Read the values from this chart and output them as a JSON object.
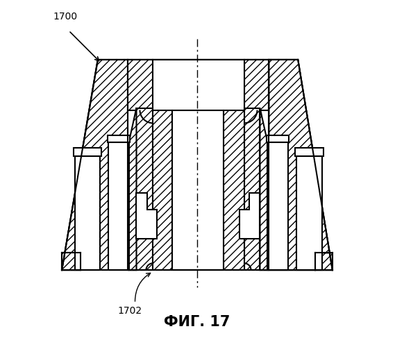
{
  "title": "ФИГ. 17",
  "label_1700": "1700",
  "label_1702": "1702",
  "bg_color": "#ffffff",
  "line_color": "#000000",
  "lw": 1.5,
  "title_fontsize": 15,
  "label_fontsize": 10
}
